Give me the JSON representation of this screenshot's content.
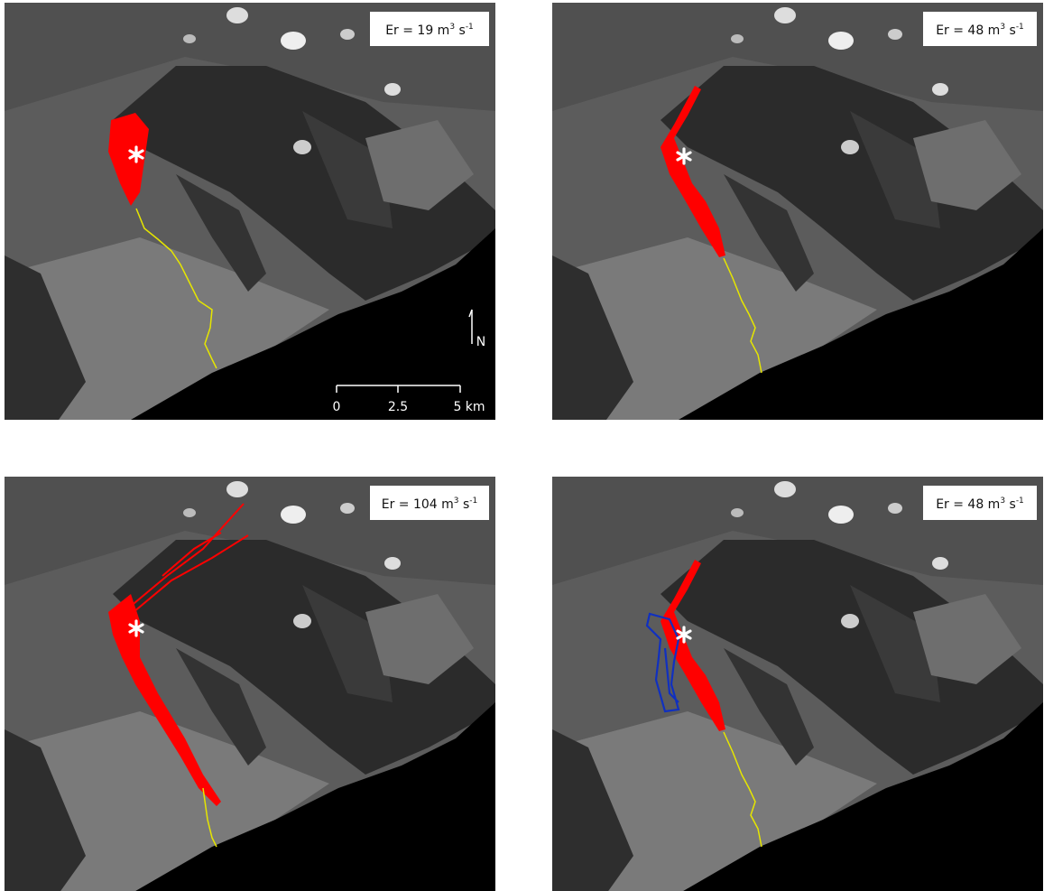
{
  "panels": [
    {
      "label_parts": [
        "Er = 19 m",
        "3",
        " s",
        "-1"
      ]
    },
    {
      "label_parts": [
        "Er = 48 m",
        "3",
        " s",
        "-1"
      ]
    },
    {
      "label_parts": [
        "Er = 104 m",
        "3",
        " s",
        "-1"
      ]
    },
    {
      "label_parts": [
        "Er = 48 m",
        "3",
        " s",
        "-1"
      ]
    }
  ],
  "scale_bar": {
    "ticks": [
      "0",
      "2.5",
      "5 km"
    ]
  },
  "north_label": "N"
}
